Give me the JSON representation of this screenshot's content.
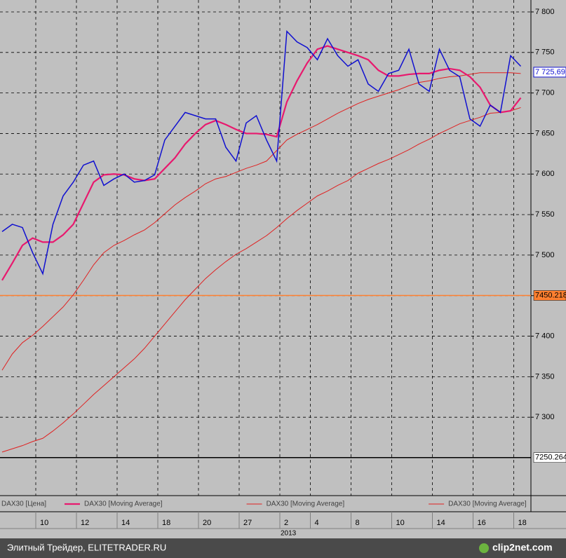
{
  "chart_data": {
    "type": "line",
    "categories": [
      null,
      null,
      null,
      null,
      "10",
      null,
      null,
      null,
      "12",
      null,
      null,
      null,
      "14",
      null,
      null,
      null,
      "18",
      null,
      null,
      null,
      "20",
      null,
      null,
      null,
      "27",
      null,
      null,
      null,
      "2",
      null,
      null,
      "4",
      null,
      null,
      null,
      "8",
      null,
      null,
      null,
      "10",
      null,
      null,
      null,
      "14",
      null,
      null,
      null,
      "16",
      null,
      null,
      null,
      "18"
    ],
    "year_label": "2013",
    "series": [
      {
        "name": "DAX30 [Цена]",
        "color": "#1010d0",
        "width": 1.5,
        "values": [
          7529,
          7538,
          7534,
          7503,
          7477,
          7538,
          7573,
          7590,
          7611,
          7616,
          7586,
          7594,
          7600,
          7590,
          7592,
          7599,
          7642,
          7659,
          7676,
          7672,
          7668,
          7668,
          7633,
          7616,
          7663,
          7672,
          7642,
          7616,
          7776,
          7763,
          7756,
          7741,
          7767,
          7746,
          7733,
          7741,
          7711,
          7702,
          7724,
          7728,
          7754,
          7711,
          7702,
          7754,
          7728,
          7720,
          7668,
          7659,
          7685,
          7676,
          7746,
          7733
        ]
      },
      {
        "name": "DAX30 [Moving Average]",
        "color": "#e8196e",
        "width": 2.2,
        "values": [
          7469,
          7490,
          7512,
          7521,
          7516,
          7516,
          7525,
          7538,
          7564,
          7590,
          7599,
          7600,
          7599,
          7594,
          7592,
          7594,
          7607,
          7620,
          7637,
          7650,
          7661,
          7666,
          7661,
          7655,
          7650,
          7650,
          7649,
          7646,
          7689,
          7715,
          7737,
          7754,
          7758,
          7754,
          7750,
          7746,
          7741,
          7728,
          7721,
          7721,
          7723,
          7724,
          7724,
          7728,
          7730,
          7728,
          7720,
          7707,
          7685,
          7676,
          7678,
          7694
        ]
      },
      {
        "name": "DAX30 [Moving Average]",
        "color": "#e02020",
        "width": 1,
        "values": [
          7358,
          7378,
          7392,
          7401,
          7412,
          7424,
          7436,
          7451,
          7469,
          7488,
          7503,
          7512,
          7518,
          7525,
          7531,
          7540,
          7551,
          7562,
          7571,
          7579,
          7588,
          7594,
          7597,
          7602,
          7607,
          7611,
          7616,
          7629,
          7642,
          7649,
          7655,
          7661,
          7668,
          7675,
          7681,
          7687,
          7692,
          7696,
          7700,
          7704,
          7709,
          7713,
          7715,
          7718,
          7720,
          7721,
          7723,
          7725,
          7725,
          7725,
          7725,
          7724
        ]
      },
      {
        "name": "DAX30 [Moving Average]",
        "color": "#e02020",
        "width": 1,
        "values": [
          7257,
          7261,
          7265,
          7270,
          7274,
          7283,
          7293,
          7304,
          7316,
          7328,
          7339,
          7350,
          7361,
          7372,
          7385,
          7400,
          7415,
          7430,
          7445,
          7458,
          7471,
          7482,
          7492,
          7501,
          7508,
          7516,
          7524,
          7534,
          7545,
          7555,
          7564,
          7573,
          7579,
          7586,
          7592,
          7601,
          7607,
          7613,
          7618,
          7624,
          7630,
          7637,
          7643,
          7650,
          7656,
          7662,
          7666,
          7670,
          7675,
          7676,
          7678,
          7682
        ]
      }
    ],
    "ylim": [
      7203.3,
      7814.7
    ],
    "yticks": [
      {
        "value": 7800,
        "label": "7 800"
      },
      {
        "value": 7750,
        "label": "7 750"
      },
      {
        "value": 7700,
        "label": "7 700"
      },
      {
        "value": 7650,
        "label": "7 650"
      },
      {
        "value": 7600,
        "label": "7 600"
      },
      {
        "value": 7550,
        "label": "7 550"
      },
      {
        "value": 7500,
        "label": "7 500"
      },
      {
        "value": 7450,
        "label": "7 450"
      },
      {
        "value": 7400,
        "label": "7 400"
      },
      {
        "value": 7350,
        "label": "7 350"
      },
      {
        "value": 7300,
        "label": "7 300"
      }
    ],
    "grid": true,
    "levels": [
      {
        "value": 7450.218,
        "label": "7450.218",
        "color": "#ff8030",
        "box": "#ff8030"
      },
      {
        "value": 7250.264,
        "label": "7250.264",
        "color": "#000000",
        "box": "#ffffff"
      }
    ],
    "last_price": {
      "value": 7725.69,
      "label": "7 725,69"
    },
    "footer": {
      "left": "Элитный Трейдер, ELITETRADER.RU",
      "right": "clip2net.com"
    }
  }
}
